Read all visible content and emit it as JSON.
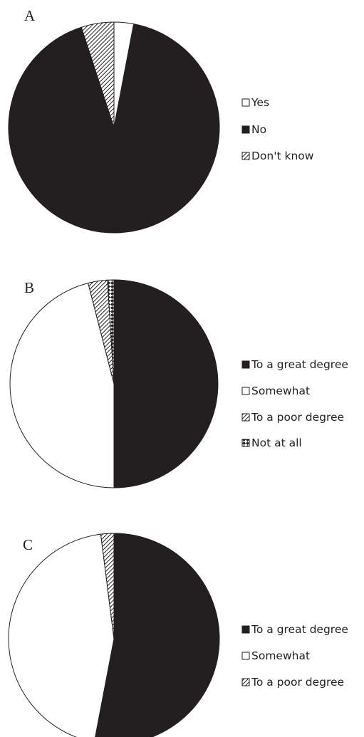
{
  "colors": {
    "ink": "#231f20",
    "white": "#ffffff"
  },
  "chart_data": [
    {
      "type": "pie",
      "panel_label": "A",
      "slices": [
        {
          "label": "Yes",
          "value": 3,
          "fill": "white"
        },
        {
          "label": "No",
          "value": 92,
          "fill": "black"
        },
        {
          "label": "Don't know",
          "value": 5,
          "fill": "hatch"
        }
      ],
      "legend": [
        "Yes",
        "No",
        "Don't know"
      ],
      "legend_fills": [
        "white",
        "black",
        "hatch"
      ],
      "legend_position": "right"
    },
    {
      "type": "pie",
      "panel_label": "B",
      "slices": [
        {
          "label": "To a great degree",
          "value": 50,
          "fill": "black"
        },
        {
          "label": "Somewhat",
          "value": 46,
          "fill": "white"
        },
        {
          "label": "To a poor degree",
          "value": 3,
          "fill": "hatch"
        },
        {
          "label": "Not at all",
          "value": 1,
          "fill": "diamond"
        }
      ],
      "legend": [
        "To a great degree",
        "Somewhat",
        "To a poor degree",
        "Not at all"
      ],
      "legend_fills": [
        "black",
        "white",
        "hatch",
        "diamond"
      ],
      "legend_position": "right"
    },
    {
      "type": "pie",
      "panel_label": "C",
      "slices": [
        {
          "label": "To a great degree",
          "value": 53,
          "fill": "black"
        },
        {
          "label": "Somewhat",
          "value": 45,
          "fill": "white"
        },
        {
          "label": "To a poor degree",
          "value": 2,
          "fill": "hatch"
        }
      ],
      "legend": [
        "To a great degree",
        "Somewhat",
        "To a poor degree"
      ],
      "legend_fills": [
        "black",
        "white",
        "hatch"
      ],
      "legend_position": "right"
    }
  ]
}
